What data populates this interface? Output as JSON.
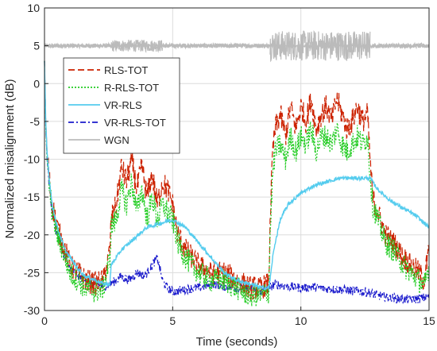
{
  "chart_data": {
    "type": "line",
    "title": "",
    "xlabel": "Time (seconds)",
    "ylabel": "Normalized misalignment (dB)",
    "xlim": [
      0,
      15
    ],
    "ylim": [
      -30,
      10
    ],
    "xticks": [
      0,
      5,
      10,
      15
    ],
    "yticks": [
      -30,
      -25,
      -20,
      -15,
      -10,
      -5,
      0,
      5,
      10
    ],
    "grid": true,
    "legend_position": "upper-left",
    "series": [
      {
        "name": "RLS-TOT",
        "color": "#cc2200",
        "style": "dashed",
        "x": [
          0,
          0.05,
          0.1,
          0.2,
          0.3,
          0.5,
          0.8,
          1.0,
          1.3,
          1.6,
          2.0,
          2.3,
          2.55,
          2.6,
          2.8,
          3.0,
          3.2,
          3.4,
          3.6,
          3.8,
          4.0,
          4.2,
          4.4,
          4.6,
          4.8,
          5.0,
          5.2,
          5.5,
          6.0,
          6.5,
          7.0,
          7.5,
          8.0,
          8.5,
          8.75,
          8.8,
          8.9,
          9.0,
          9.2,
          9.4,
          9.6,
          9.8,
          10.0,
          10.2,
          10.4,
          10.6,
          10.8,
          11.0,
          11.2,
          11.4,
          11.6,
          11.8,
          12.0,
          12.2,
          12.4,
          12.6,
          12.7,
          12.8,
          13.0,
          13.3,
          13.6,
          14.0,
          14.3,
          14.6,
          14.8,
          15.0
        ],
        "y": [
          3,
          -5,
          -9,
          -13,
          -16,
          -19,
          -22,
          -24,
          -25,
          -26,
          -26.5,
          -26,
          -22,
          -18,
          -16,
          -11,
          -13,
          -10,
          -14,
          -11,
          -15,
          -12,
          -16,
          -13,
          -14,
          -16,
          -20,
          -22,
          -24,
          -25,
          -25,
          -26,
          -27,
          -27,
          -26.5,
          -18,
          -9,
          -6,
          -4,
          -7,
          -3,
          -6,
          -3,
          -5,
          -2,
          -6,
          -4,
          -3,
          -5,
          -2,
          -4,
          -6,
          -5,
          -3,
          -5,
          -4,
          -10,
          -15,
          -17,
          -20,
          -21,
          -23,
          -24,
          -25,
          -26,
          -22
        ]
      },
      {
        "name": "R-RLS-TOT",
        "color": "#22cc22",
        "style": "dotted",
        "x": [
          0,
          0.05,
          0.1,
          0.2,
          0.3,
          0.5,
          0.8,
          1.0,
          1.3,
          1.6,
          2.0,
          2.3,
          2.55,
          2.6,
          2.8,
          3.0,
          3.2,
          3.4,
          3.6,
          3.8,
          4.0,
          4.2,
          4.4,
          4.6,
          4.8,
          5.0,
          5.2,
          5.5,
          6.0,
          6.5,
          7.0,
          7.5,
          8.0,
          8.5,
          8.75,
          8.8,
          8.9,
          9.0,
          9.2,
          9.4,
          9.6,
          9.8,
          10.0,
          10.2,
          10.4,
          10.6,
          10.8,
          11.0,
          11.2,
          11.4,
          11.6,
          11.8,
          12.0,
          12.2,
          12.4,
          12.6,
          12.7,
          12.8,
          13.0,
          13.3,
          13.6,
          14.0,
          14.3,
          14.6,
          14.8,
          15.0
        ],
        "y": [
          3,
          -6,
          -10,
          -14,
          -17,
          -20,
          -23,
          -25,
          -26,
          -27,
          -27.5,
          -27,
          -23,
          -19,
          -18,
          -14,
          -16,
          -13,
          -17,
          -14,
          -18,
          -15,
          -18,
          -16,
          -17,
          -18,
          -21,
          -23,
          -25,
          -26,
          -26,
          -27,
          -28,
          -28,
          -27.5,
          -20,
          -12,
          -9,
          -8,
          -10,
          -7,
          -9,
          -7,
          -8,
          -6,
          -9,
          -7,
          -7,
          -8,
          -6,
          -8,
          -9,
          -8,
          -7,
          -8,
          -7,
          -12,
          -16,
          -18,
          -21,
          -22,
          -24,
          -25,
          -26,
          -27,
          -24
        ]
      },
      {
        "name": "VR-RLS",
        "color": "#55ccee",
        "style": "solid",
        "x": [
          0,
          0.05,
          0.1,
          0.2,
          0.3,
          0.5,
          0.8,
          1.0,
          1.3,
          1.6,
          2.0,
          2.3,
          2.55,
          2.6,
          2.8,
          3.0,
          3.5,
          4.0,
          4.5,
          5.0,
          5.5,
          6.0,
          6.5,
          7.0,
          7.5,
          8.0,
          8.5,
          8.75,
          8.8,
          8.9,
          9.0,
          9.2,
          9.5,
          10.0,
          10.5,
          11.0,
          11.5,
          12.0,
          12.5,
          12.7,
          12.8,
          13.0,
          13.5,
          14.0,
          14.5,
          15.0
        ],
        "y": [
          3,
          -5,
          -9,
          -13,
          -16,
          -19,
          -22,
          -23,
          -24.5,
          -25.5,
          -26,
          -26.5,
          -26.5,
          -24,
          -23,
          -22,
          -20.5,
          -19,
          -18.5,
          -18,
          -19,
          -21,
          -23,
          -25,
          -26,
          -26.5,
          -27,
          -27,
          -26,
          -23,
          -21,
          -18,
          -16,
          -14.5,
          -13.5,
          -13,
          -12.5,
          -12.5,
          -12.5,
          -12.5,
          -13,
          -14,
          -15.5,
          -16.5,
          -17.5,
          -19
        ]
      },
      {
        "name": "VR-RLS-TOT",
        "color": "#1a1acc",
        "style": "dashdot",
        "x": [
          0,
          0.05,
          0.1,
          0.2,
          0.3,
          0.5,
          0.8,
          1.0,
          1.3,
          1.6,
          2.0,
          2.3,
          2.55,
          2.8,
          3.0,
          3.3,
          3.6,
          3.9,
          4.2,
          4.4,
          4.6,
          4.8,
          5.0,
          5.5,
          6.0,
          6.5,
          7.0,
          7.5,
          8.0,
          8.5,
          8.75,
          9.0,
          9.5,
          10.0,
          10.5,
          11.0,
          11.5,
          12.0,
          12.5,
          13.0,
          13.5,
          14.0,
          14.5,
          15.0
        ],
        "y": [
          3,
          -6,
          -10,
          -14,
          -17,
          -20,
          -23,
          -24.5,
          -25.5,
          -26,
          -26.5,
          -26.8,
          -26.5,
          -26,
          -25.5,
          -26,
          -25,
          -25.5,
          -24,
          -23,
          -26,
          -27,
          -27.5,
          -27.2,
          -27,
          -26.5,
          -26.8,
          -27,
          -27.2,
          -27.5,
          -27,
          -26.5,
          -26.8,
          -27,
          -26.9,
          -27.1,
          -27.2,
          -27.4,
          -27.5,
          -28,
          -28.3,
          -28.5,
          -28.5,
          -28.2
        ]
      },
      {
        "name": "WGN",
        "color": "#bbbbbb",
        "style": "solid",
        "x": [
          0,
          2.55,
          2.6,
          4.6,
          4.65,
          8.75,
          8.8,
          12.7,
          12.75,
          15.0
        ],
        "y": [
          5,
          5,
          5,
          5,
          5,
          5,
          5,
          5,
          5,
          5
        ],
        "noise_band": [
          [
            0,
            2.55,
            0.3
          ],
          [
            2.6,
            4.6,
            0.8
          ],
          [
            4.65,
            8.75,
            0.3
          ],
          [
            8.8,
            12.7,
            2.0
          ],
          [
            12.75,
            15.0,
            0.3
          ]
        ]
      }
    ]
  }
}
